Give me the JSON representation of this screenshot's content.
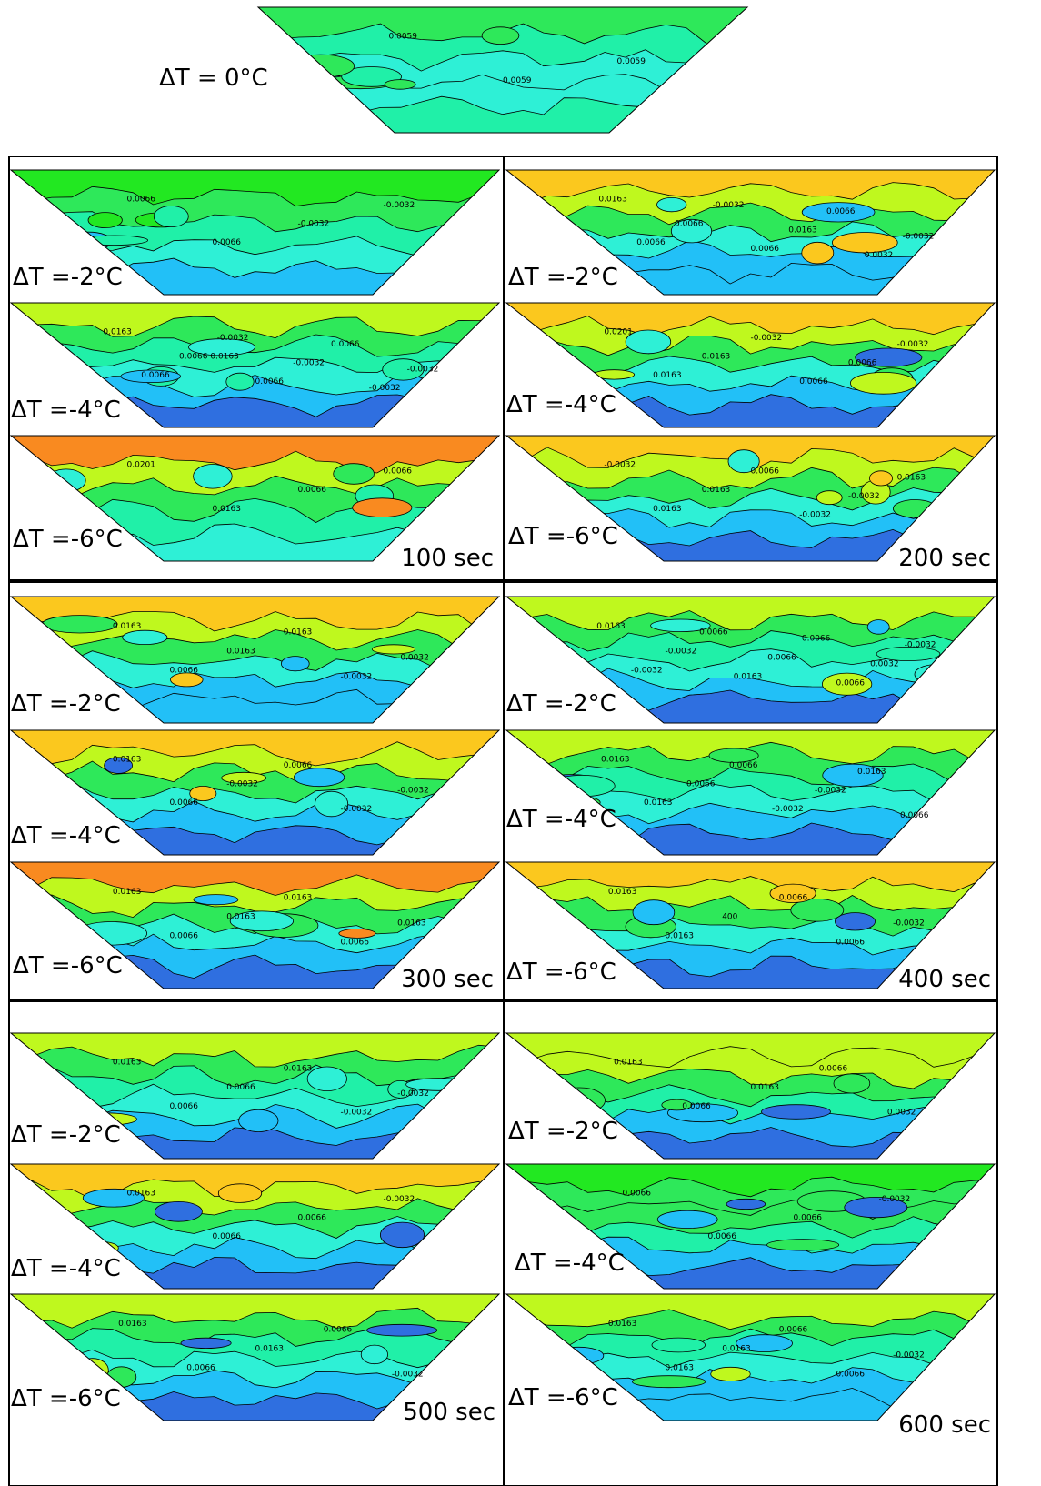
{
  "colors": {
    "dark_blue": "#2f6fe0",
    "light_blue": "#22c0f7",
    "cyan": "#2ef0d6",
    "aqua_green": "#20f0a8",
    "green": "#2ee85a",
    "bright_green": "#22e821",
    "yellow_green": "#bff81e",
    "yellow_orange": "#fbc81e",
    "orange": "#f98a20",
    "red_orange": "#f76a1e"
  },
  "top_panel": {
    "label": "ΔT = 0°C",
    "contour_labels": [
      "0.0059",
      "0.0059",
      "0.0059"
    ]
  },
  "groups": [
    {
      "time_label": "100 sec",
      "panels": [
        {
          "label": "ΔT =-2°C",
          "contour_labels": [
            "0.0066",
            "0.0066",
            "-0.0032",
            "-0.0032"
          ]
        },
        {
          "label": "ΔT =-4°C",
          "contour_labels": [
            "0.0163",
            "0.0066",
            "0.0066 0.0163",
            "-0.0032",
            "0.0066",
            "-0.0032",
            "0.0066",
            "-0.0032",
            "-0.0032"
          ]
        },
        {
          "label": "ΔT =-6°C",
          "contour_labels": [
            "0.0201",
            "0.0163",
            "0.0066",
            "0.0066"
          ]
        }
      ]
    },
    {
      "time_label": "200 sec",
      "panels": [
        {
          "label": "ΔT =-2°C",
          "contour_labels": [
            "0.0163",
            "0.0066",
            "0.0066",
            "-0.0032",
            "0.0066",
            "0.0163",
            "0.0066",
            "0.0032",
            "-0.0032"
          ]
        },
        {
          "label": "ΔT =-4°C",
          "contour_labels": [
            "0.0201",
            "0.0163",
            "0.0163",
            "-0.0032",
            "0.0066",
            "0.0066",
            "-0.0032"
          ]
        },
        {
          "label": "ΔT =-6°C",
          "contour_labels": [
            "-0.0032",
            "0.0163",
            "0.0163",
            "0.0066",
            "-0.0032",
            "-0.0032",
            "0.0163"
          ]
        }
      ]
    },
    {
      "time_label": "300 sec",
      "panels": [
        {
          "label": "ΔT =-2°C",
          "contour_labels": [
            "0.0163",
            "0.0066",
            "0.0163",
            "0.0163",
            "-0.0032",
            "-0.0032"
          ]
        },
        {
          "label": "ΔT =-4°C",
          "contour_labels": [
            "0.0163",
            "0.0066",
            "-0.0032",
            "0.0066",
            "-0.0032",
            "-0.0032"
          ]
        },
        {
          "label": "ΔT =-6°C",
          "contour_labels": [
            "0.0163",
            "0.0066",
            "0.0163",
            "0.0163",
            "0.0066",
            "0.0163"
          ]
        }
      ]
    },
    {
      "time_label": "400 sec",
      "panels": [
        {
          "label": "ΔT =-2°C",
          "contour_labels": [
            "0.0163",
            "-0.0032",
            "-0.0032",
            "0.0066",
            "0.0163",
            "0.0066",
            "0.0066",
            "0.0066",
            "0.0032",
            "-0.0032"
          ]
        },
        {
          "label": "ΔT =-4°C",
          "contour_labels": [
            "0.0163",
            "0.0163",
            "0.0066",
            "0.0066",
            "-0.0032",
            "-0.0032",
            "0.0163",
            "0.0066"
          ]
        },
        {
          "label": "ΔT =-6°C",
          "contour_labels": [
            "0.0163",
            "0.0163",
            "400",
            "0.0066",
            "0.0066",
            "-0.0032"
          ]
        }
      ]
    },
    {
      "time_label": "500 sec",
      "panels": [
        {
          "label": "ΔT =-2°C",
          "contour_labels": [
            "0.0163",
            "0.0066",
            "0.0066",
            "0.0163",
            "-0.0032",
            "-0.0032"
          ]
        },
        {
          "label": "ΔT =-4°C",
          "contour_labels": [
            "0.0163",
            "0.0066",
            "0.0066",
            "-0.0032"
          ]
        },
        {
          "label": "ΔT =-6°C",
          "contour_labels": [
            "0.0163",
            "0.0066",
            "0.0163",
            "0.0066",
            "-0.0032"
          ]
        }
      ]
    },
    {
      "time_label": "600 sec",
      "panels": [
        {
          "label": "ΔT =-2°C",
          "contour_labels": [
            "0.0163",
            "0.0066",
            "0.0163",
            "0.0066",
            "0.0032"
          ]
        },
        {
          "label": "ΔT =-4°C",
          "contour_labels": [
            "0.0066",
            "0.0066",
            "0.0066",
            "-0.0032"
          ]
        },
        {
          "label": "ΔT =-6°C",
          "contour_labels": [
            "0.0163",
            "0.0163",
            "0.0163",
            "0.0066",
            "0.0066",
            "-0.0032"
          ]
        }
      ]
    }
  ]
}
